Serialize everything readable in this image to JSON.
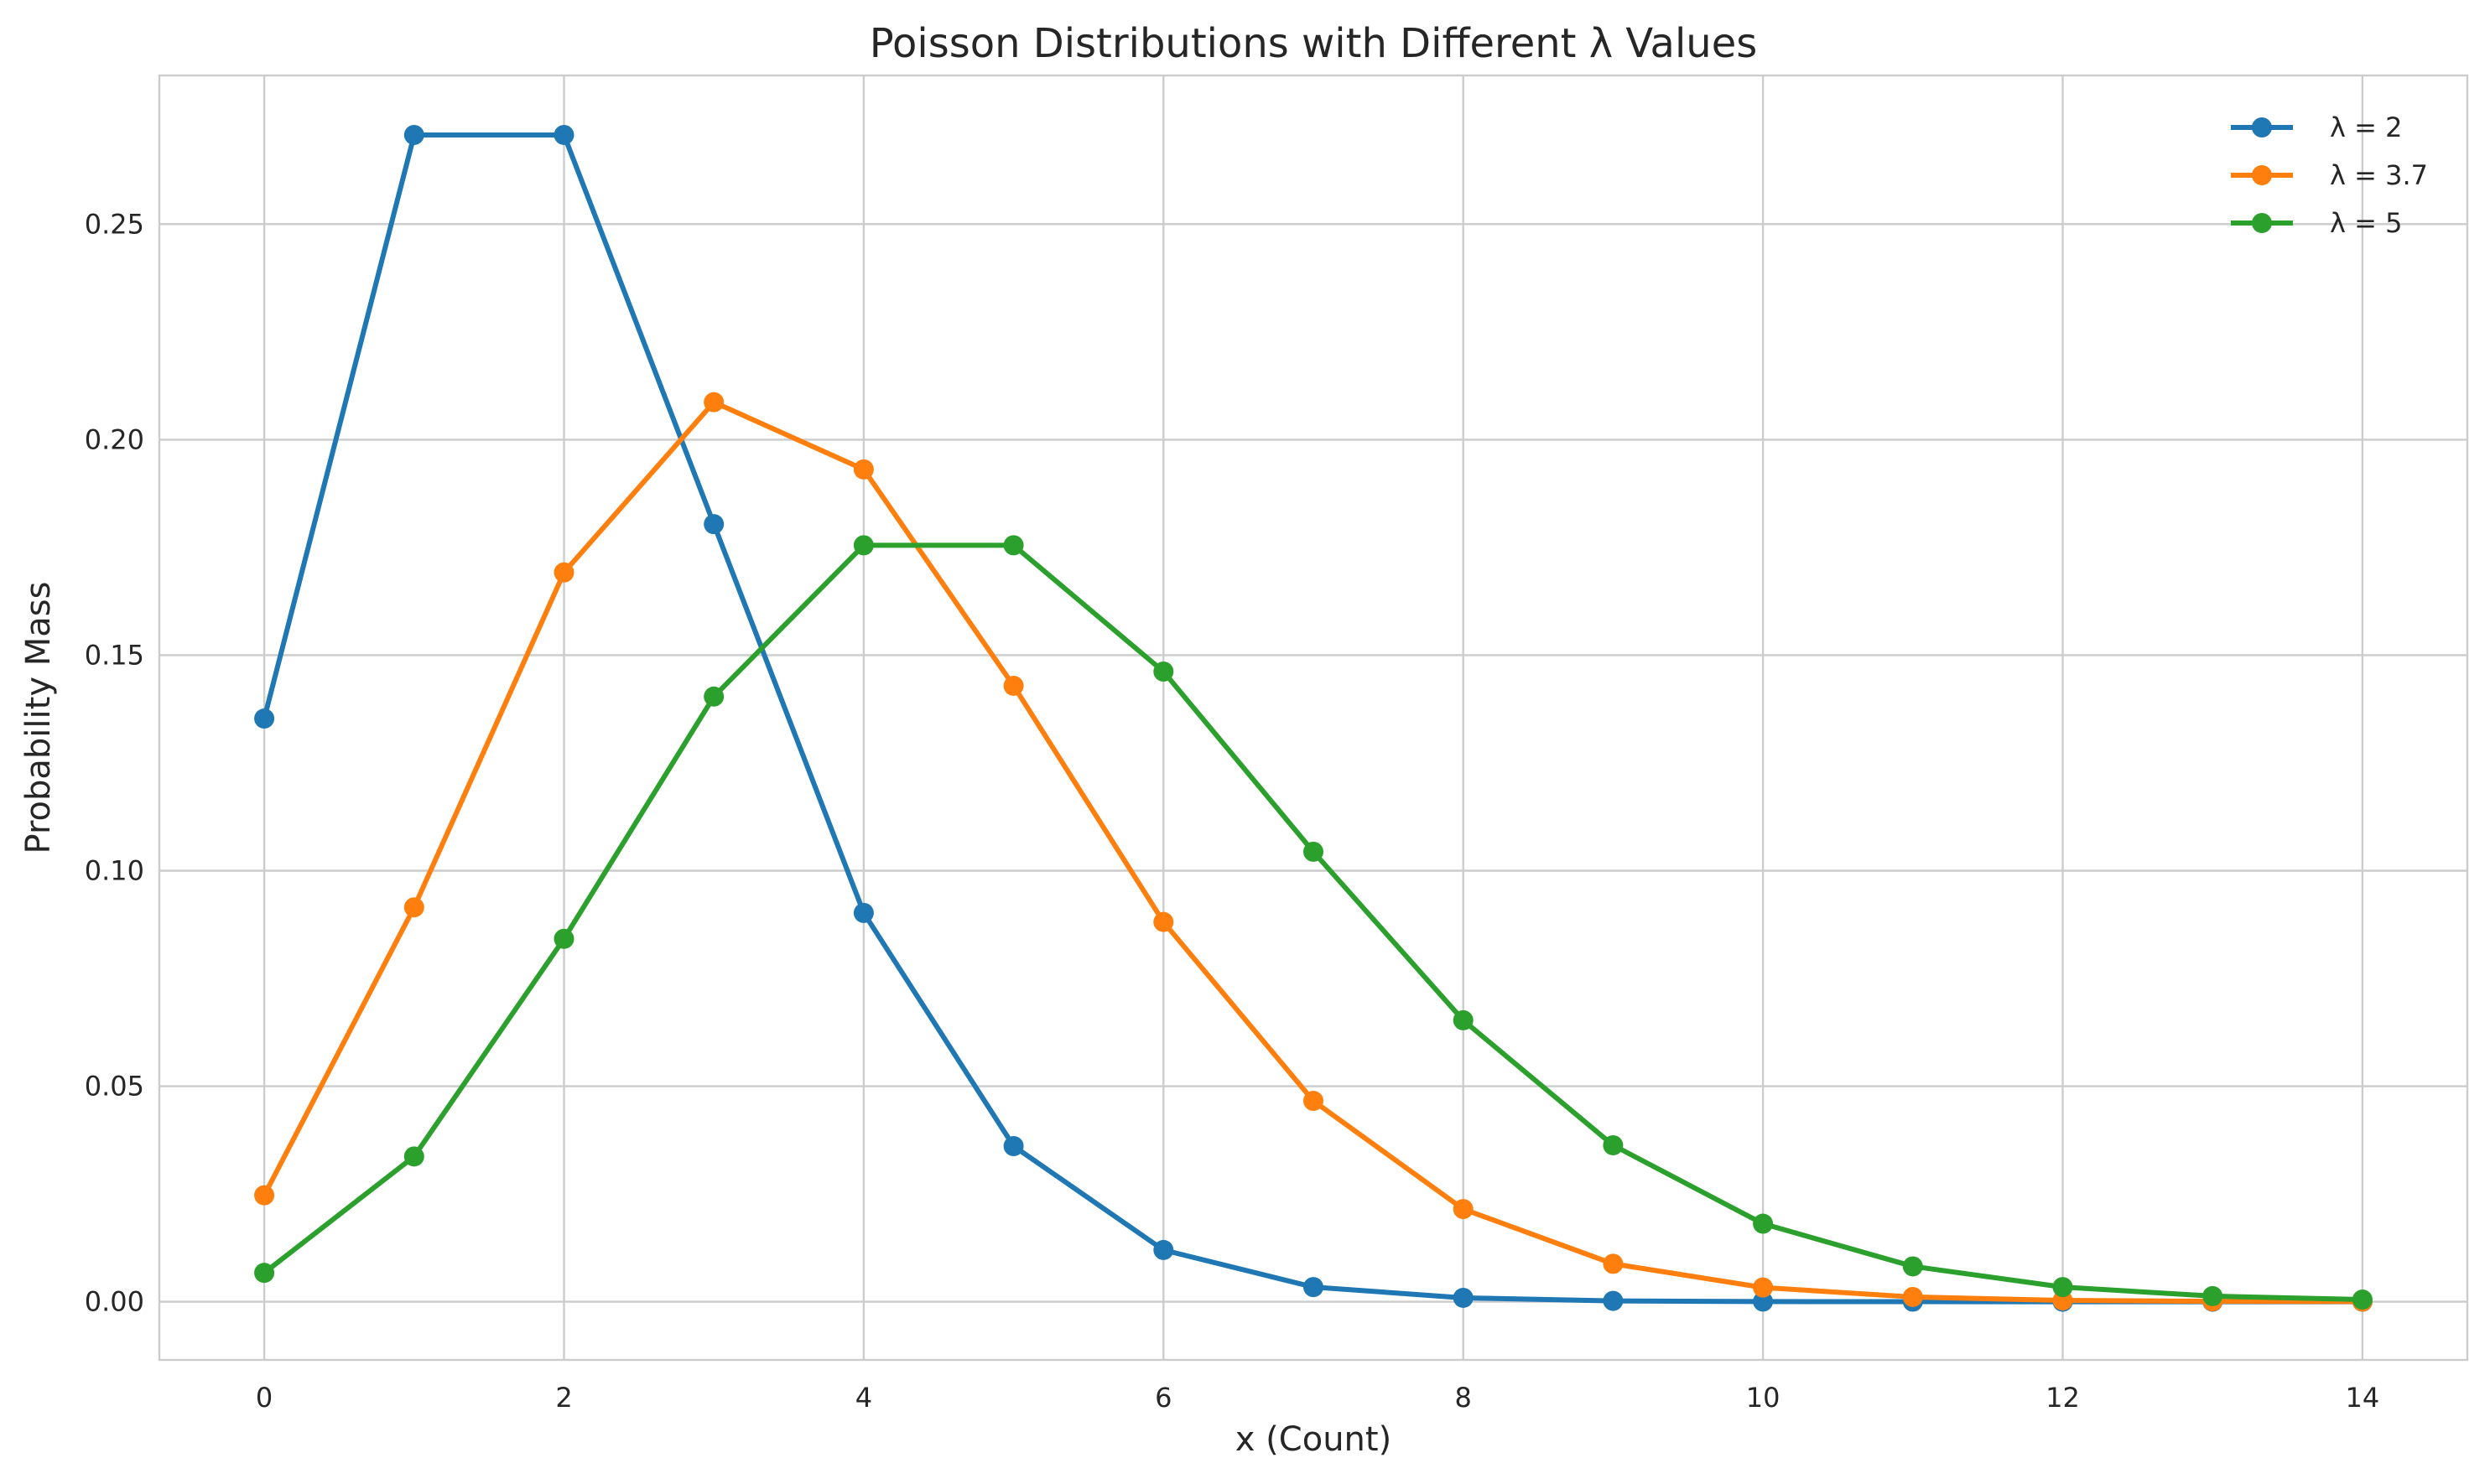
{
  "chart_data": {
    "type": "line",
    "title": "Poisson Distributions with Different λ Values",
    "xlabel": "x (Count)",
    "ylabel": "Probability Mass",
    "xlim": [
      -0.7,
      14.7
    ],
    "ylim": [
      -0.0135,
      0.2845
    ],
    "xticks": [
      0,
      2,
      4,
      6,
      8,
      10,
      12,
      14
    ],
    "xtick_labels": [
      "0",
      "2",
      "4",
      "6",
      "8",
      "10",
      "12",
      "14"
    ],
    "yticks": [
      0.0,
      0.05,
      0.1,
      0.15,
      0.2,
      0.25
    ],
    "ytick_labels": [
      "0.00",
      "0.05",
      "0.10",
      "0.15",
      "0.20",
      "0.25"
    ],
    "grid": true,
    "legend_position": "top-right",
    "x": [
      0,
      1,
      2,
      3,
      4,
      5,
      6,
      7,
      8,
      9,
      10,
      11,
      12,
      13,
      14
    ],
    "series": [
      {
        "name": "λ = 2",
        "color": "#1f77b4",
        "values": [
          0.1353,
          0.2707,
          0.2707,
          0.1804,
          0.0902,
          0.0361,
          0.012,
          0.0034,
          0.0009,
          0.0002,
          4e-05,
          1e-05,
          0.0,
          0.0,
          0.0
        ]
      },
      {
        "name": "λ = 3.7",
        "color": "#ff7f0e",
        "values": [
          0.0247,
          0.0915,
          0.1692,
          0.2087,
          0.1931,
          0.1429,
          0.0881,
          0.0466,
          0.0215,
          0.0088,
          0.0033,
          0.0011,
          0.0003,
          0.0001,
          3e-05
        ]
      },
      {
        "name": "λ = 5",
        "color": "#2ca02c",
        "values": [
          0.0067,
          0.0337,
          0.0842,
          0.1404,
          0.1755,
          0.1755,
          0.1462,
          0.1044,
          0.0653,
          0.0363,
          0.0181,
          0.0082,
          0.0034,
          0.0013,
          0.0005
        ]
      }
    ]
  }
}
